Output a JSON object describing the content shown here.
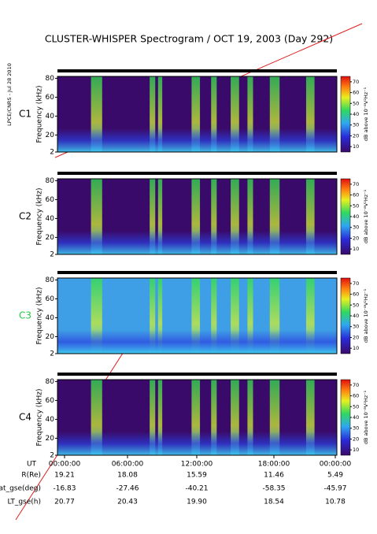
{
  "title": "CLUSTER-WHISPER Spectrogram / OCT 19, 2003 (Day 292)",
  "side_label": "LPCE/CNRS - Jul 28 2010",
  "chart_data": [
    {
      "type": "spectrogram",
      "label": "C1",
      "label_color": "#000000",
      "background": "#3a0a6a",
      "ylabel": "Frequency (kHz)",
      "ylim": [
        2,
        82
      ],
      "yticks": [
        2,
        20,
        40,
        60,
        80
      ],
      "colorbar_label": "dB above 10⁻⁸V²Hz⁻¹",
      "clim": [
        5,
        75
      ],
      "cticks": [
        10,
        20,
        30,
        40,
        50,
        60,
        70
      ]
    },
    {
      "type": "spectrogram",
      "label": "C2",
      "label_color": "#000000",
      "background": "#3a0a6a",
      "ylabel": "Frequency (kHz)",
      "ylim": [
        2,
        82
      ],
      "yticks": [
        2,
        20,
        40,
        60,
        80
      ],
      "colorbar_label": "dB above 10⁻⁸V²Hz⁻¹",
      "clim": [
        5,
        75
      ],
      "cticks": [
        10,
        20,
        30,
        40,
        50,
        60,
        70
      ]
    },
    {
      "type": "spectrogram",
      "label": "C3",
      "label_color": "#22cc44",
      "background": "#3f9fe6",
      "ylabel": "Frequency (kHz)",
      "ylim": [
        2,
        82
      ],
      "yticks": [
        2,
        20,
        40,
        60,
        80
      ],
      "colorbar_label": "dB above 10⁻⁸V²Hz⁻¹",
      "clim": [
        5,
        75
      ],
      "cticks": [
        10,
        20,
        30,
        40,
        50,
        60,
        70
      ]
    },
    {
      "type": "spectrogram",
      "label": "C4",
      "label_color": "#000000",
      "background": "#3a0a6a",
      "ylabel": "Frequency (kHz)",
      "ylim": [
        2,
        82
      ],
      "yticks": [
        2,
        20,
        40,
        60,
        80
      ],
      "colorbar_label": "dB above 10⁻⁸V²Hz⁻¹",
      "clim": [
        5,
        75
      ],
      "cticks": [
        10,
        20,
        30,
        40,
        50,
        60,
        70
      ]
    }
  ],
  "ephemeris": {
    "rows": [
      {
        "name": "UT",
        "values": [
          "00:00:00",
          "06:00:00",
          "12:00:00",
          "18:00:00",
          "00:00:00"
        ]
      },
      {
        "name": "R(Re)",
        "values": [
          "19.21",
          "18.08",
          "15.59",
          "11.46",
          "5.49"
        ]
      },
      {
        "name": "Lat_gse(deg)",
        "values": [
          "-16.83",
          "-27.46",
          "-40.21",
          "-58.35",
          "-45.97"
        ]
      },
      {
        "name": "LT_gse(h)",
        "values": [
          "20.77",
          "20.43",
          "19.90",
          "18.54",
          "10.78"
        ]
      }
    ]
  }
}
